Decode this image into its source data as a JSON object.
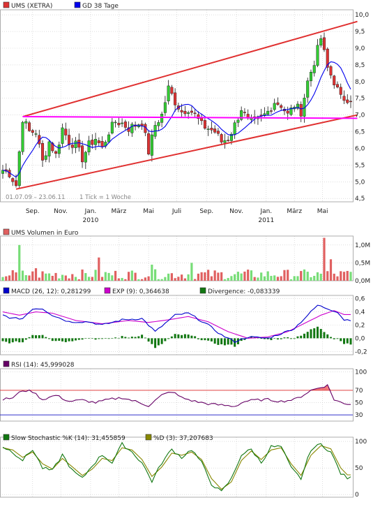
{
  "colors": {
    "candle_up": "#33cc33",
    "candle_down": "#dd3333",
    "gd38": "#0000ee",
    "channel": "#e03030",
    "support": "#ff00ff",
    "vol_up": "#77dd77",
    "vol_down": "#e06060",
    "macd": "#0000cc",
    "exp": "#cc00cc",
    "divergence": "#117711",
    "rsi": "#660066",
    "rsi_70": "#e04040",
    "rsi_30": "#3333cc",
    "k": "#117711",
    "d": "#888800",
    "grid": "#c8c8c8"
  },
  "chart_data": [
    {
      "type": "candlestick",
      "legend": [
        {
          "key": "ums",
          "label": "UMS (XETRA)",
          "color": "#dd3333"
        },
        {
          "key": "gd38",
          "label": "GD 38 Tage",
          "color": "#0000ee"
        }
      ],
      "period_label": "01.07.09 – 23.06.11",
      "tick_label": "1 Tick = 1 Woche",
      "x_labels": [
        {
          "text": "Sep.",
          "t": 9
        },
        {
          "text": "Nov.",
          "t": 17.5
        },
        {
          "text": "Jan.",
          "t": 26.5
        },
        {
          "text": "2010",
          "t": 26.5,
          "row": 2
        },
        {
          "text": "März",
          "t": 35
        },
        {
          "text": "Mai",
          "t": 44
        },
        {
          "text": "Juli",
          "t": 52.5
        },
        {
          "text": "Sep.",
          "t": 61.5
        },
        {
          "text": "Nov.",
          "t": 70.5
        },
        {
          "text": "Jan.",
          "t": 79.5
        },
        {
          "text": "2011",
          "t": 79.5,
          "row": 2
        },
        {
          "text": "März",
          "t": 88
        },
        {
          "text": "Mai",
          "t": 96.5
        }
      ],
      "y_ticks": [
        "4,5",
        "5,0",
        "5,5",
        "6,0",
        "6,5",
        "7,0",
        "7,5",
        "8,0",
        "8,5",
        "9,0",
        "9,5",
        "10,0"
      ],
      "y_tick_values": [
        4.5,
        5.0,
        5.5,
        6.0,
        6.5,
        7.0,
        7.5,
        8.0,
        8.5,
        9.0,
        9.5,
        10.0
      ],
      "ylim": [
        4.4,
        10.15
      ],
      "close_anchors": [
        [
          0,
          5.35
        ],
        [
          2,
          5.25
        ],
        [
          4,
          4.9
        ],
        [
          6,
          6.9
        ],
        [
          8,
          6.5
        ],
        [
          10,
          6.5
        ],
        [
          12,
          5.6
        ],
        [
          14,
          6.2
        ],
        [
          16,
          5.8
        ],
        [
          18,
          6.6
        ],
        [
          20,
          6.2
        ],
        [
          22,
          6.1
        ],
        [
          24,
          5.7
        ],
        [
          26,
          6.1
        ],
        [
          28,
          6.3
        ],
        [
          30,
          6.0
        ],
        [
          32,
          6.5
        ],
        [
          34,
          6.8
        ],
        [
          36,
          6.75
        ],
        [
          38,
          6.6
        ],
        [
          40,
          6.7
        ],
        [
          42,
          6.8
        ],
        [
          44,
          5.9
        ],
        [
          46,
          6.7
        ],
        [
          48,
          7.0
        ],
        [
          50,
          7.8
        ],
        [
          52,
          7.4
        ],
        [
          54,
          7.1
        ],
        [
          56,
          7.2
        ],
        [
          58,
          7.0
        ],
        [
          60,
          6.7
        ],
        [
          62,
          6.6
        ],
        [
          64,
          6.5
        ],
        [
          66,
          6.2
        ],
        [
          68,
          6.3
        ],
        [
          70,
          6.7
        ],
        [
          72,
          7.2
        ],
        [
          74,
          6.8
        ],
        [
          76,
          6.8
        ],
        [
          78,
          6.9
        ],
        [
          80,
          7.1
        ],
        [
          82,
          7.4
        ],
        [
          84,
          7.3
        ],
        [
          86,
          7.0
        ],
        [
          88,
          7.3
        ],
        [
          90,
          7.1
        ],
        [
          92,
          8.0
        ],
        [
          94,
          8.6
        ],
        [
          96,
          9.3
        ],
        [
          98,
          8.4
        ],
        [
          100,
          8.0
        ],
        [
          102,
          7.5
        ]
      ],
      "channel_upper": [
        [
          6,
          6.95
        ],
        [
          107,
          9.8
        ]
      ],
      "channel_lower": [
        [
          4,
          4.78
        ],
        [
          107,
          7.0
        ]
      ],
      "support_line": [
        [
          6,
          6.95
        ],
        [
          107,
          6.9
        ]
      ]
    },
    {
      "type": "bar",
      "legend": [
        {
          "label": "UMS Volumen in Euro",
          "color": "#e06060"
        }
      ],
      "y_ticks": [
        "0,0M",
        "0,5M",
        "1,0M"
      ],
      "y_tick_values": [
        0,
        0.5,
        1.0
      ],
      "ylim": [
        0,
        1.25
      ],
      "highlights": [
        [
          5,
          1.0
        ],
        [
          10,
          0.35
        ],
        [
          29,
          0.65
        ],
        [
          45,
          0.45
        ],
        [
          57,
          0.5
        ],
        [
          97,
          1.2
        ],
        [
          99,
          0.6
        ]
      ]
    },
    {
      "type": "line",
      "legend": [
        {
          "key": "macd",
          "label": "MACD (26, 12): 0,281299",
          "color": "#0000cc"
        },
        {
          "key": "exp",
          "label": "EXP (9): 0,364638",
          "color": "#cc00cc"
        },
        {
          "key": "div",
          "label": "Divergence: -0,083339",
          "color": "#117711"
        }
      ],
      "y_ticks": [
        "-0,2",
        "0,0",
        "0,2",
        "0,4",
        "0,6"
      ],
      "y_tick_values": [
        -0.2,
        0,
        0.2,
        0.4,
        0.6
      ],
      "ylim": [
        -0.25,
        0.65
      ],
      "macd_anchors": [
        [
          0,
          0.35
        ],
        [
          3,
          0.3
        ],
        [
          6,
          0.3
        ],
        [
          9,
          0.45
        ],
        [
          12,
          0.45
        ],
        [
          15,
          0.35
        ],
        [
          20,
          0.25
        ],
        [
          26,
          0.25
        ],
        [
          30,
          0.2
        ],
        [
          36,
          0.28
        ],
        [
          42,
          0.3
        ],
        [
          46,
          0.1
        ],
        [
          52,
          0.35
        ],
        [
          56,
          0.38
        ],
        [
          62,
          0.2
        ],
        [
          66,
          0.05
        ],
        [
          70,
          -0.05
        ],
        [
          74,
          0.02
        ],
        [
          80,
          0.0
        ],
        [
          84,
          0.07
        ],
        [
          88,
          0.15
        ],
        [
          92,
          0.35
        ],
        [
          95,
          0.5
        ],
        [
          98,
          0.45
        ],
        [
          101,
          0.4
        ],
        [
          103,
          0.28
        ]
      ],
      "exp_anchors": [
        [
          0,
          0.4
        ],
        [
          5,
          0.35
        ],
        [
          10,
          0.4
        ],
        [
          15,
          0.38
        ],
        [
          22,
          0.27
        ],
        [
          30,
          0.22
        ],
        [
          38,
          0.27
        ],
        [
          44,
          0.24
        ],
        [
          50,
          0.28
        ],
        [
          56,
          0.33
        ],
        [
          62,
          0.25
        ],
        [
          68,
          0.1
        ],
        [
          74,
          0.0
        ],
        [
          80,
          0.02
        ],
        [
          86,
          0.1
        ],
        [
          92,
          0.25
        ],
        [
          96,
          0.35
        ],
        [
          100,
          0.42
        ],
        [
          103,
          0.36
        ]
      ]
    },
    {
      "type": "line",
      "legend": [
        {
          "label": "RSI (14): 45,999028",
          "color": "#660066"
        }
      ],
      "y_ticks": [
        "30",
        "50",
        "70",
        "100"
      ],
      "y_tick_values": [
        30,
        50,
        70,
        100
      ],
      "ylim": [
        20,
        105
      ],
      "levels": [
        70,
        30
      ],
      "rsi_anchors": [
        [
          0,
          55
        ],
        [
          3,
          58
        ],
        [
          6,
          70
        ],
        [
          9,
          68
        ],
        [
          12,
          55
        ],
        [
          16,
          62
        ],
        [
          20,
          52
        ],
        [
          24,
          54
        ],
        [
          28,
          50
        ],
        [
          32,
          55
        ],
        [
          36,
          58
        ],
        [
          40,
          52
        ],
        [
          44,
          45
        ],
        [
          48,
          62
        ],
        [
          51,
          68
        ],
        [
          54,
          58
        ],
        [
          58,
          52
        ],
        [
          62,
          48
        ],
        [
          66,
          46
        ],
        [
          70,
          44
        ],
        [
          73,
          52
        ],
        [
          76,
          54
        ],
        [
          80,
          55
        ],
        [
          84,
          52
        ],
        [
          88,
          55
        ],
        [
          90,
          60
        ],
        [
          93,
          70
        ],
        [
          96,
          75
        ],
        [
          98,
          78
        ],
        [
          100,
          55
        ],
        [
          103,
          48
        ]
      ]
    },
    {
      "type": "line",
      "legend": [
        {
          "key": "k",
          "label": "Slow Stochastic %K (14): 31,455859",
          "color": "#117711"
        },
        {
          "key": "d",
          "label": "%D (3): 37,207683",
          "color": "#888800"
        }
      ],
      "y_ticks": [
        "0",
        "50",
        "100"
      ],
      "y_tick_values": [
        0,
        50,
        100
      ],
      "ylim": [
        -5,
        108
      ],
      "k_anchors": [
        [
          0,
          90
        ],
        [
          3,
          80
        ],
        [
          6,
          65
        ],
        [
          9,
          85
        ],
        [
          12,
          50
        ],
        [
          15,
          45
        ],
        [
          18,
          75
        ],
        [
          21,
          45
        ],
        [
          24,
          30
        ],
        [
          27,
          55
        ],
        [
          30,
          75
        ],
        [
          33,
          60
        ],
        [
          36,
          95
        ],
        [
          39,
          80
        ],
        [
          42,
          60
        ],
        [
          45,
          25
        ],
        [
          48,
          60
        ],
        [
          51,
          85
        ],
        [
          54,
          70
        ],
        [
          57,
          85
        ],
        [
          60,
          60
        ],
        [
          63,
          20
        ],
        [
          66,
          5
        ],
        [
          69,
          30
        ],
        [
          72,
          75
        ],
        [
          75,
          85
        ],
        [
          78,
          60
        ],
        [
          81,
          90
        ],
        [
          84,
          90
        ],
        [
          87,
          50
        ],
        [
          90,
          30
        ],
        [
          93,
          85
        ],
        [
          96,
          95
        ],
        [
          99,
          80
        ],
        [
          102,
          40
        ],
        [
          104,
          31
        ]
      ],
      "d_anchors": [
        [
          0,
          88
        ],
        [
          3,
          84
        ],
        [
          6,
          70
        ],
        [
          9,
          80
        ],
        [
          12,
          58
        ],
        [
          15,
          48
        ],
        [
          18,
          68
        ],
        [
          21,
          52
        ],
        [
          24,
          36
        ],
        [
          27,
          48
        ],
        [
          30,
          68
        ],
        [
          33,
          64
        ],
        [
          36,
          88
        ],
        [
          39,
          84
        ],
        [
          42,
          66
        ],
        [
          45,
          34
        ],
        [
          48,
          52
        ],
        [
          51,
          78
        ],
        [
          54,
          74
        ],
        [
          57,
          80
        ],
        [
          60,
          66
        ],
        [
          63,
          30
        ],
        [
          66,
          10
        ],
        [
          69,
          24
        ],
        [
          72,
          64
        ],
        [
          75,
          82
        ],
        [
          78,
          66
        ],
        [
          81,
          84
        ],
        [
          84,
          88
        ],
        [
          87,
          58
        ],
        [
          90,
          36
        ],
        [
          93,
          74
        ],
        [
          96,
          92
        ],
        [
          99,
          86
        ],
        [
          102,
          50
        ],
        [
          104,
          37
        ]
      ]
    }
  ]
}
